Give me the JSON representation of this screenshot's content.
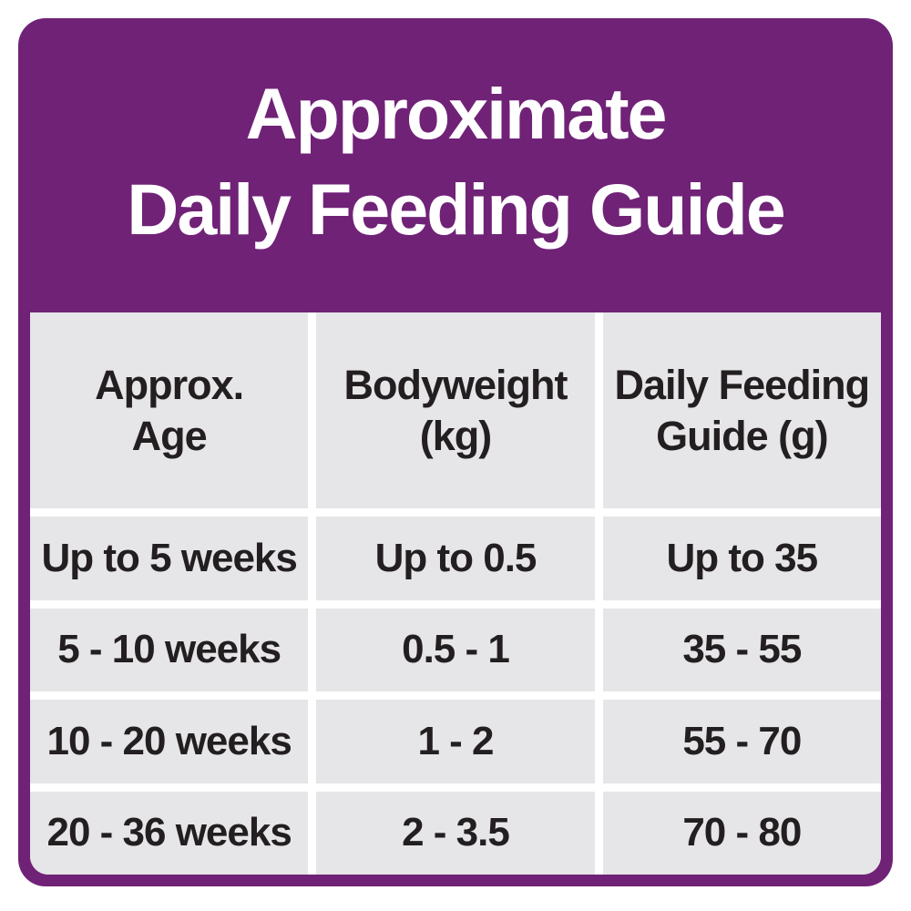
{
  "colors": {
    "card_purple": "#702277",
    "cell_gray": "#E6E5E7",
    "text_dark": "#231F20",
    "title_white": "#FFFFFF",
    "page_background": "#FFFFFF"
  },
  "title": {
    "line1": "Approximate",
    "line2": "Daily Feeding Guide"
  },
  "header_lines": [
    [
      "Approx.",
      "Age"
    ],
    [
      "Bodyweight",
      "(kg)"
    ],
    [
      "Daily Feeding",
      "Guide (g)"
    ]
  ],
  "chart_data": {
    "type": "table",
    "title": "Approximate Daily Feeding Guide",
    "columns": [
      "Approx. Age",
      "Bodyweight (kg)",
      "Daily Feeding Guide (g)"
    ],
    "rows": [
      [
        "Up to 5 weeks",
        "Up to 0.5",
        "Up to 35"
      ],
      [
        "5 - 10 weeks",
        "0.5 - 1",
        "35 - 55"
      ],
      [
        "10 - 20 weeks",
        "1 - 2",
        "55 - 70"
      ],
      [
        "20 - 36 weeks",
        "2 - 3.5",
        "70 - 80"
      ]
    ]
  }
}
